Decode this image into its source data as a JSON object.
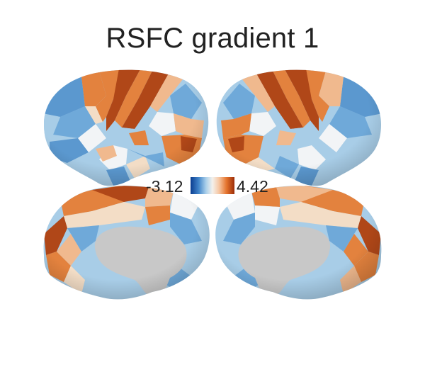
{
  "figure": {
    "title": "RSFC gradient 1",
    "colorbar": {
      "min_label": "-3.12",
      "max_label": "4.42",
      "stops": [
        "#0b3d91",
        "#3f83c8",
        "#a9cfea",
        "#f4f1ec",
        "#f6c6a2",
        "#e5742d",
        "#9b2d08"
      ]
    },
    "views": [
      "left-lateral",
      "right-lateral",
      "left-medial",
      "right-medial"
    ],
    "colors": {
      "dark_orange": "#b04718",
      "orange": "#e3823e",
      "light_orange": "#f0b98e",
      "cream": "#f3ddc6",
      "white": "#f2f4f6",
      "pale_blue": "#a8cde7",
      "blue": "#6fa9d9",
      "mid_blue": "#5b98cf",
      "wall": "#c8c8c8"
    }
  }
}
